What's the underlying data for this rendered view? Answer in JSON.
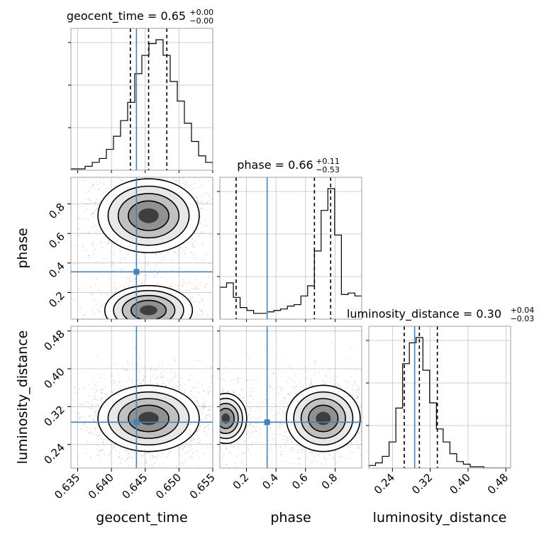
{
  "chart_data": {
    "type": "corner",
    "parameters": [
      {
        "name": "geocent_time",
        "range": [
          0.634,
          0.655
        ],
        "ticks": [
          "0.635",
          "0.640",
          "0.645",
          "0.650",
          "0.655"
        ],
        "tick_values": [
          0.635,
          0.64,
          0.645,
          0.65,
          0.655
        ],
        "truth": 0.6437
      },
      {
        "name": "phase",
        "range": [
          0.02,
          0.98
        ],
        "ticks": [
          "0.2",
          "0.4",
          "0.6",
          "0.8"
        ],
        "tick_values": [
          0.2,
          0.4,
          0.6,
          0.8
        ],
        "truth": 0.34
      },
      {
        "name": "luminosity_distance",
        "range": [
          0.19,
          0.49
        ],
        "ticks": [
          "0.24",
          "0.32",
          "0.40",
          "0.48"
        ],
        "tick_values": [
          0.24,
          0.32,
          0.4,
          0.48
        ],
        "truth": 0.287
      }
    ],
    "marginal_titles": [
      {
        "label": "geocent_time = 0.65",
        "sup": "+0.00",
        "sub": "−0.00"
      },
      {
        "label": "phase = 0.66",
        "sup": "+0.11",
        "sub": "−0.53"
      },
      {
        "label": "luminosity_distance = 0.30",
        "sup": "+0.04",
        "sub": "−0.03"
      }
    ],
    "quantiles": [
      [
        0.6428,
        0.6455,
        0.6482
      ],
      [
        0.13,
        0.66,
        0.77
      ],
      [
        0.265,
        0.297,
        0.335
      ]
    ],
    "histograms": [
      {
        "edges_start": 0.634,
        "bin_width": 0.00105,
        "counts": [
          0.01,
          0.01,
          0.03,
          0.06,
          0.09,
          0.16,
          0.26,
          0.38,
          0.52,
          0.74,
          0.88,
          0.97,
          1.0,
          0.88,
          0.68,
          0.53,
          0.36,
          0.22,
          0.11,
          0.06,
          0.02
        ]
      },
      {
        "edges_start": 0.02,
        "bin_width": 0.0457,
        "counts": [
          0.22,
          0.25,
          0.15,
          0.08,
          0.06,
          0.04,
          0.04,
          0.05,
          0.06,
          0.07,
          0.09,
          0.1,
          0.16,
          0.23,
          0.47,
          0.75,
          0.9,
          0.58,
          0.17,
          0.18,
          0.16
        ]
      },
      {
        "edges_start": 0.19,
        "bin_width": 0.0143,
        "counts": [
          0.02,
          0.04,
          0.09,
          0.2,
          0.46,
          0.8,
          0.96,
          1.0,
          0.75,
          0.5,
          0.3,
          0.2,
          0.11,
          0.05,
          0.03,
          0.01,
          0.01,
          0.0,
          0.0,
          0.0,
          0.0
        ]
      }
    ],
    "joint_modes": [
      {
        "x": "geocent_time",
        "y": "phase",
        "blobs": [
          {
            "cx": 0.6455,
            "cy": 0.72,
            "sx": 0.003,
            "sy": 0.1,
            "w": 1.0
          },
          {
            "cx": 0.6455,
            "cy": 0.08,
            "sx": 0.0035,
            "sy": 0.09,
            "w": 0.55
          }
        ]
      },
      {
        "x": "geocent_time",
        "y": "luminosity_distance",
        "blobs": [
          {
            "cx": 0.6455,
            "cy": 0.295,
            "sx": 0.003,
            "sy": 0.028,
            "w": 1.0
          }
        ]
      },
      {
        "x": "phase",
        "y": "luminosity_distance",
        "blobs": [
          {
            "cx": 0.72,
            "cy": 0.295,
            "sx": 0.1,
            "sy": 0.028,
            "w": 1.0
          },
          {
            "cx": 0.06,
            "cy": 0.295,
            "sx": 0.08,
            "sy": 0.03,
            "w": 0.5
          }
        ]
      }
    ],
    "colors": {
      "truth": "#4682b4",
      "contour": "#000000",
      "hist": "#000000",
      "grid": "#c0c0c0",
      "points": "#9a9a9a"
    },
    "grid": true
  }
}
